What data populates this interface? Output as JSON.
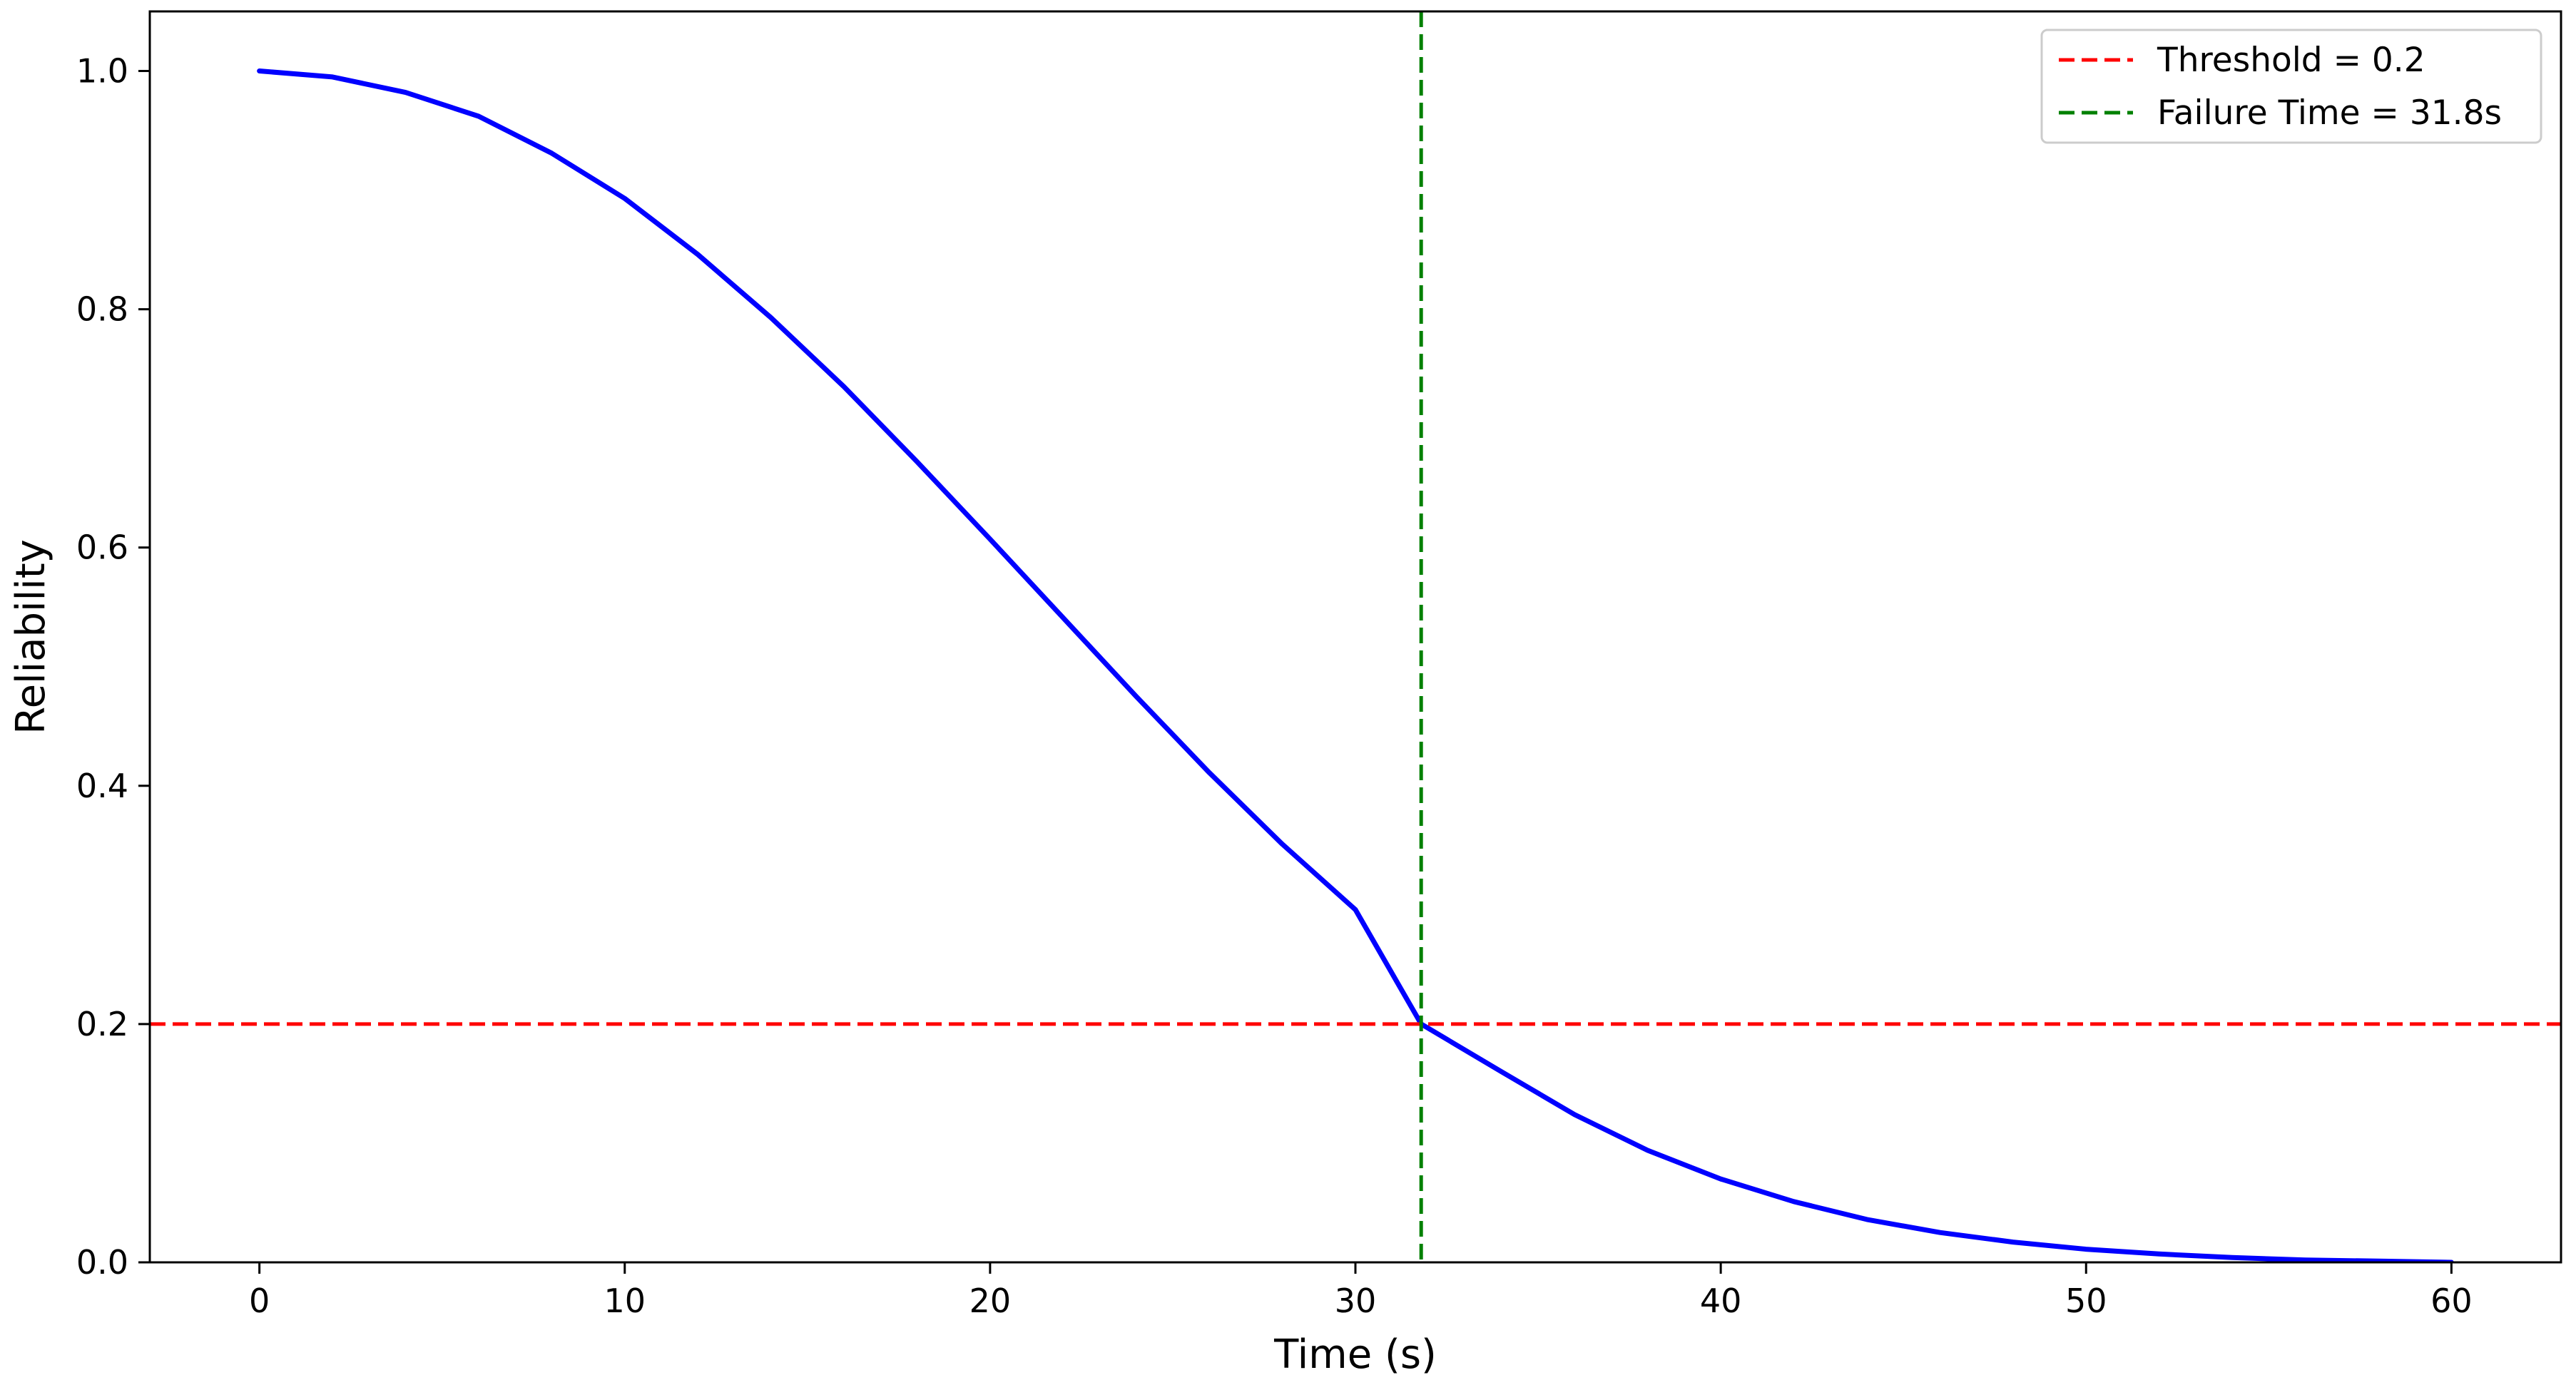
{
  "chart_data": {
    "type": "line",
    "title": "",
    "xlabel": "Time (s)",
    "ylabel": "Reliability",
    "xlim": [
      -3,
      63
    ],
    "ylim": [
      0,
      1.05
    ],
    "x_ticks": [
      0,
      10,
      20,
      30,
      40,
      50,
      60
    ],
    "x_tick_labels": [
      "0",
      "10",
      "20",
      "30",
      "40",
      "50",
      "60"
    ],
    "y_ticks": [
      0.0,
      0.2,
      0.4,
      0.6,
      0.8,
      1.0
    ],
    "y_tick_labels": [
      "0.0",
      "0.2",
      "0.4",
      "0.6",
      "0.8",
      "1.0"
    ],
    "grid": false,
    "legend_position": "top-right",
    "series": [
      {
        "x": [
          0,
          2,
          4,
          6,
          8,
          10,
          12,
          14,
          16,
          18,
          20,
          22,
          24,
          26,
          28,
          30,
          31.8,
          34,
          36,
          38,
          40,
          42,
          44,
          46,
          48,
          50,
          52,
          54,
          56,
          58,
          60
        ],
        "y": [
          1.0,
          0.995,
          0.982,
          0.962,
          0.931,
          0.893,
          0.846,
          0.793,
          0.735,
          0.672,
          0.607,
          0.541,
          0.475,
          0.411,
          0.351,
          0.296,
          0.2,
          0.16,
          0.124,
          0.094,
          0.07,
          0.051,
          0.036,
          0.025,
          0.017,
          0.011,
          0.007,
          0.004,
          0.002,
          0.001,
          0.0
        ],
        "color": "#0000ff",
        "style": "solid"
      }
    ],
    "reference_lines": [
      {
        "orientation": "horizontal",
        "value": 0.2,
        "color": "#ff0000",
        "style": "dashed",
        "label": "Threshold = 0.2"
      },
      {
        "orientation": "vertical",
        "value": 31.8,
        "color": "#008000",
        "style": "dashed",
        "label": "Failure Time = 31.8s"
      }
    ]
  }
}
